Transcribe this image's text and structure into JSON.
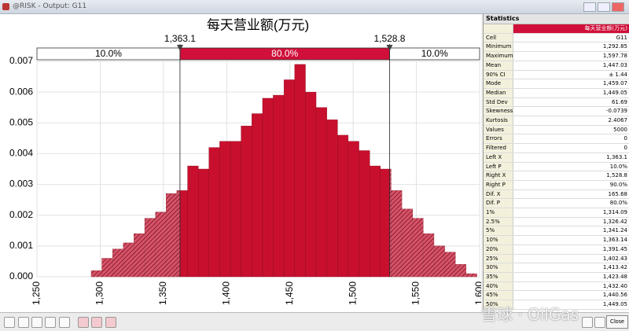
{
  "window": {
    "title": "@RISK - Output: G11"
  },
  "chart_data": {
    "type": "histogram",
    "title": "每天营业额(万元)",
    "color": "#c8102e",
    "bins": [
      1292.9,
      1301.3,
      1309.8,
      1318.3,
      1326.7,
      1335.2,
      1343.7,
      1352.1,
      1360.6,
      1369.1,
      1377.6,
      1386.0,
      1394.5,
      1403.0,
      1411.4,
      1419.9,
      1428.4,
      1436.8,
      1445.3,
      1453.8,
      1462.3,
      1470.7,
      1479.2,
      1487.7,
      1496.1,
      1504.6,
      1513.1,
      1521.5,
      1530.0,
      1538.5,
      1547.0,
      1555.4,
      1563.9,
      1572.4,
      1580.8,
      1589.3,
      1597.8
    ],
    "values": [
      0.0002,
      0.0006,
      0.0009,
      0.0011,
      0.0014,
      0.0019,
      0.0021,
      0.0027,
      0.0028,
      0.0036,
      0.0035,
      0.0042,
      0.0044,
      0.0044,
      0.0049,
      0.0053,
      0.0058,
      0.0059,
      0.0064,
      0.0069,
      0.006,
      0.0055,
      0.0051,
      0.0046,
      0.0044,
      0.0041,
      0.0036,
      0.0035,
      0.0028,
      0.0022,
      0.0019,
      0.0014,
      0.001,
      0.0008,
      0.0004,
      0.0001
    ],
    "xlim": [
      1250,
      1600
    ],
    "xticks": [
      {
        "value": 1250,
        "label": "1,250"
      },
      {
        "value": 1300,
        "label": "1,300"
      },
      {
        "value": 1350,
        "label": "1,350"
      },
      {
        "value": 1400,
        "label": "1,400"
      },
      {
        "value": 1450,
        "label": "1,450"
      },
      {
        "value": 1500,
        "label": "1,500"
      },
      {
        "value": 1550,
        "label": "1,550"
      },
      {
        "value": 1600,
        "label": "1,600"
      }
    ],
    "ylim": [
      0,
      0.007
    ],
    "yticks": [
      {
        "value": 0,
        "label": "0.000"
      },
      {
        "value": 0.001,
        "label": "0.001"
      },
      {
        "value": 0.002,
        "label": "0.002"
      },
      {
        "value": 0.003,
        "label": "0.003"
      },
      {
        "value": 0.004,
        "label": "0.004"
      },
      {
        "value": 0.005,
        "label": "0.005"
      },
      {
        "value": 0.006,
        "label": "0.006"
      },
      {
        "value": 0.007,
        "label": "0.007"
      }
    ],
    "grid": true,
    "delimiters": [
      {
        "value": 1363.1,
        "label": "1,363.1"
      },
      {
        "value": 1528.8,
        "label": "1,528.8"
      }
    ],
    "region_labels": [
      "10.0%",
      "80.0%",
      "10.0%"
    ]
  },
  "statistics": {
    "title": "Statistics",
    "column": "每天营业额(万元)",
    "rows": [
      [
        "Cell",
        "G11"
      ],
      [
        "Minimum",
        "1,292.85"
      ],
      [
        "Maximum",
        "1,597.78"
      ],
      [
        "Mean",
        "1,447.03"
      ],
      [
        "90% CI",
        "± 1.44"
      ],
      [
        "Mode",
        "1,459.07"
      ],
      [
        "Median",
        "1,449.05"
      ],
      [
        "Std Dev",
        "61.69"
      ],
      [
        "Skewness",
        "-0.0739"
      ],
      [
        "Kurtosis",
        "2.4067"
      ],
      [
        "Values",
        "5000"
      ],
      [
        "Errors",
        "0"
      ],
      [
        "Filtered",
        "0"
      ],
      [
        "Left X",
        "1,363.1"
      ],
      [
        "Left P",
        "10.0%"
      ],
      [
        "Right X",
        "1,528.8"
      ],
      [
        "Right P",
        "90.0%"
      ],
      [
        "Dif. X",
        "165.68"
      ],
      [
        "Dif. P",
        "80.0%"
      ],
      [
        "1%",
        "1,314.09"
      ],
      [
        "2.5%",
        "1,326.42"
      ],
      [
        "5%",
        "1,341.24"
      ],
      [
        "10%",
        "1,363.14"
      ],
      [
        "20%",
        "1,391.45"
      ],
      [
        "25%",
        "1,402.43"
      ],
      [
        "30%",
        "1,413.42"
      ],
      [
        "35%",
        "1,423.48"
      ],
      [
        "40%",
        "1,432.40"
      ],
      [
        "45%",
        "1,440.56"
      ],
      [
        "50%",
        "1,449.05"
      ]
    ]
  },
  "toolbar": {
    "close": "Close"
  },
  "watermark": "雪球 · OilGas"
}
